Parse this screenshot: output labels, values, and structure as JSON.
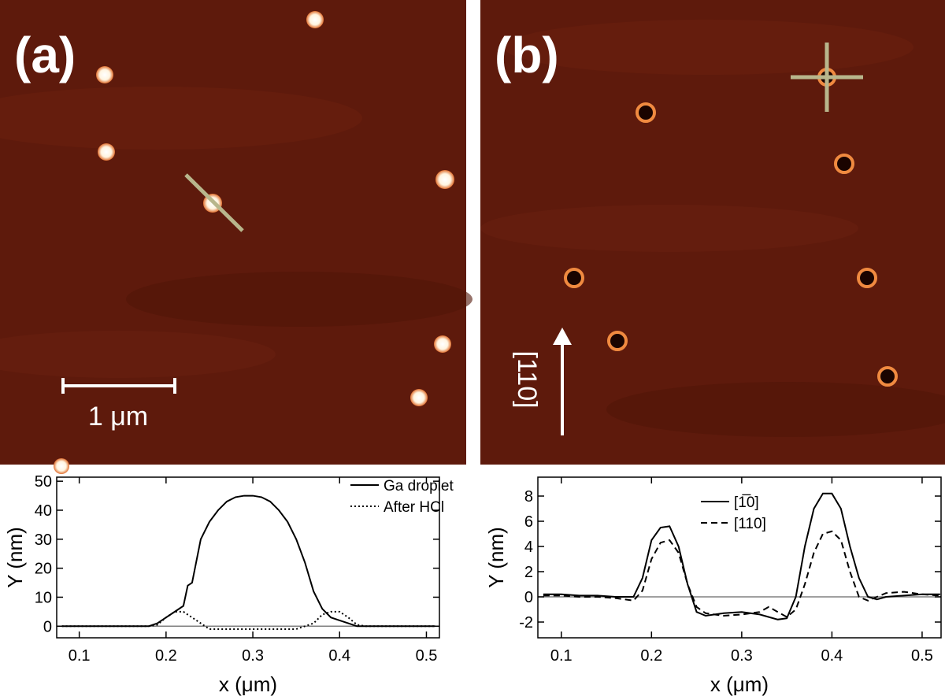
{
  "images": [
    {
      "label": "(a)",
      "scale_bar": "1 μm"
    },
    {
      "label": "(b)",
      "direction": "[110]"
    }
  ],
  "chart_data": [
    {
      "type": "line",
      "x_label": "x (μm)",
      "y_label": "Y (nm)",
      "xlim": [
        0.074,
        0.515
      ],
      "ylim": [
        -4,
        51.4
      ],
      "xticks": [
        0.1,
        0.2,
        0.3,
        0.4,
        0.5
      ],
      "yticks": [
        0,
        10,
        20,
        30,
        40,
        50
      ],
      "reference_line": 0,
      "x": [
        0.08,
        0.1,
        0.12,
        0.14,
        0.16,
        0.18,
        0.19,
        0.2,
        0.21,
        0.22,
        0.225,
        0.23,
        0.24,
        0.25,
        0.26,
        0.27,
        0.28,
        0.29,
        0.3,
        0.31,
        0.32,
        0.33,
        0.34,
        0.35,
        0.36,
        0.37,
        0.38,
        0.39,
        0.4,
        0.41,
        0.42,
        0.43,
        0.45,
        0.48,
        0.51
      ],
      "series": [
        {
          "name": "Ga droplet",
          "color": "#000000",
          "style": "solid",
          "values": [
            0,
            0,
            0,
            0,
            0,
            0,
            1,
            3,
            5,
            7,
            14,
            15,
            30,
            36,
            40,
            43,
            44.5,
            45,
            45,
            44.5,
            43,
            40,
            36,
            30,
            22,
            12,
            6,
            3,
            2,
            1,
            0,
            0,
            0,
            0,
            0
          ]
        },
        {
          "name": "After HCl",
          "color": "#000000",
          "style": "dotted",
          "values": [
            0,
            0,
            0,
            0,
            0,
            0,
            0.5,
            3,
            5,
            5,
            4,
            3,
            1,
            -1,
            -1,
            -1,
            -1,
            -1,
            -1,
            -1,
            -1,
            -1,
            -1,
            -1,
            0,
            1,
            4,
            5,
            5,
            3,
            0.5,
            0,
            0,
            0,
            0
          ]
        }
      ]
    },
    {
      "type": "line",
      "x_label": "x (μm)",
      "y_label": "Y (nm)",
      "xlim": [
        0.074,
        0.521
      ],
      "ylim": [
        -3.25,
        9.5
      ],
      "xticks": [
        0.1,
        0.2,
        0.3,
        0.4,
        0.5
      ],
      "yticks": [
        -2,
        0,
        2,
        4,
        6,
        8
      ],
      "reference_line": 0,
      "x": [
        0.08,
        0.1,
        0.12,
        0.14,
        0.16,
        0.18,
        0.19,
        0.2,
        0.21,
        0.22,
        0.23,
        0.24,
        0.25,
        0.26,
        0.28,
        0.3,
        0.32,
        0.33,
        0.34,
        0.35,
        0.36,
        0.37,
        0.38,
        0.39,
        0.4,
        0.41,
        0.42,
        0.43,
        0.44,
        0.45,
        0.46,
        0.48,
        0.5,
        0.52
      ],
      "series": [
        {
          "name": "[1̅0]",
          "color": "#000000",
          "style": "solid",
          "values": [
            0.2,
            0.2,
            0.1,
            0.1,
            0,
            0,
            1.5,
            4.5,
            5.5,
            5.6,
            4,
            1,
            -1.2,
            -1.5,
            -1.3,
            -1.2,
            -1.4,
            -1.6,
            -1.8,
            -1.7,
            0,
            4,
            7,
            8.2,
            8.2,
            7,
            4,
            1.5,
            0,
            -0.2,
            0,
            0.1,
            0.2,
            0.2
          ]
        },
        {
          "name": "[110]",
          "color": "#000000",
          "style": "dashed",
          "values": [
            0.1,
            0.1,
            0,
            0,
            -0.1,
            -0.3,
            0.5,
            3,
            4.3,
            4.5,
            3.5,
            1,
            -0.8,
            -1.3,
            -1.5,
            -1.4,
            -1.2,
            -0.8,
            -1.2,
            -1.6,
            -1,
            1,
            3.5,
            5,
            5.2,
            4.5,
            2,
            0,
            -0.3,
            0,
            0.3,
            0.4,
            0.2,
            0.1
          ]
        }
      ]
    }
  ]
}
